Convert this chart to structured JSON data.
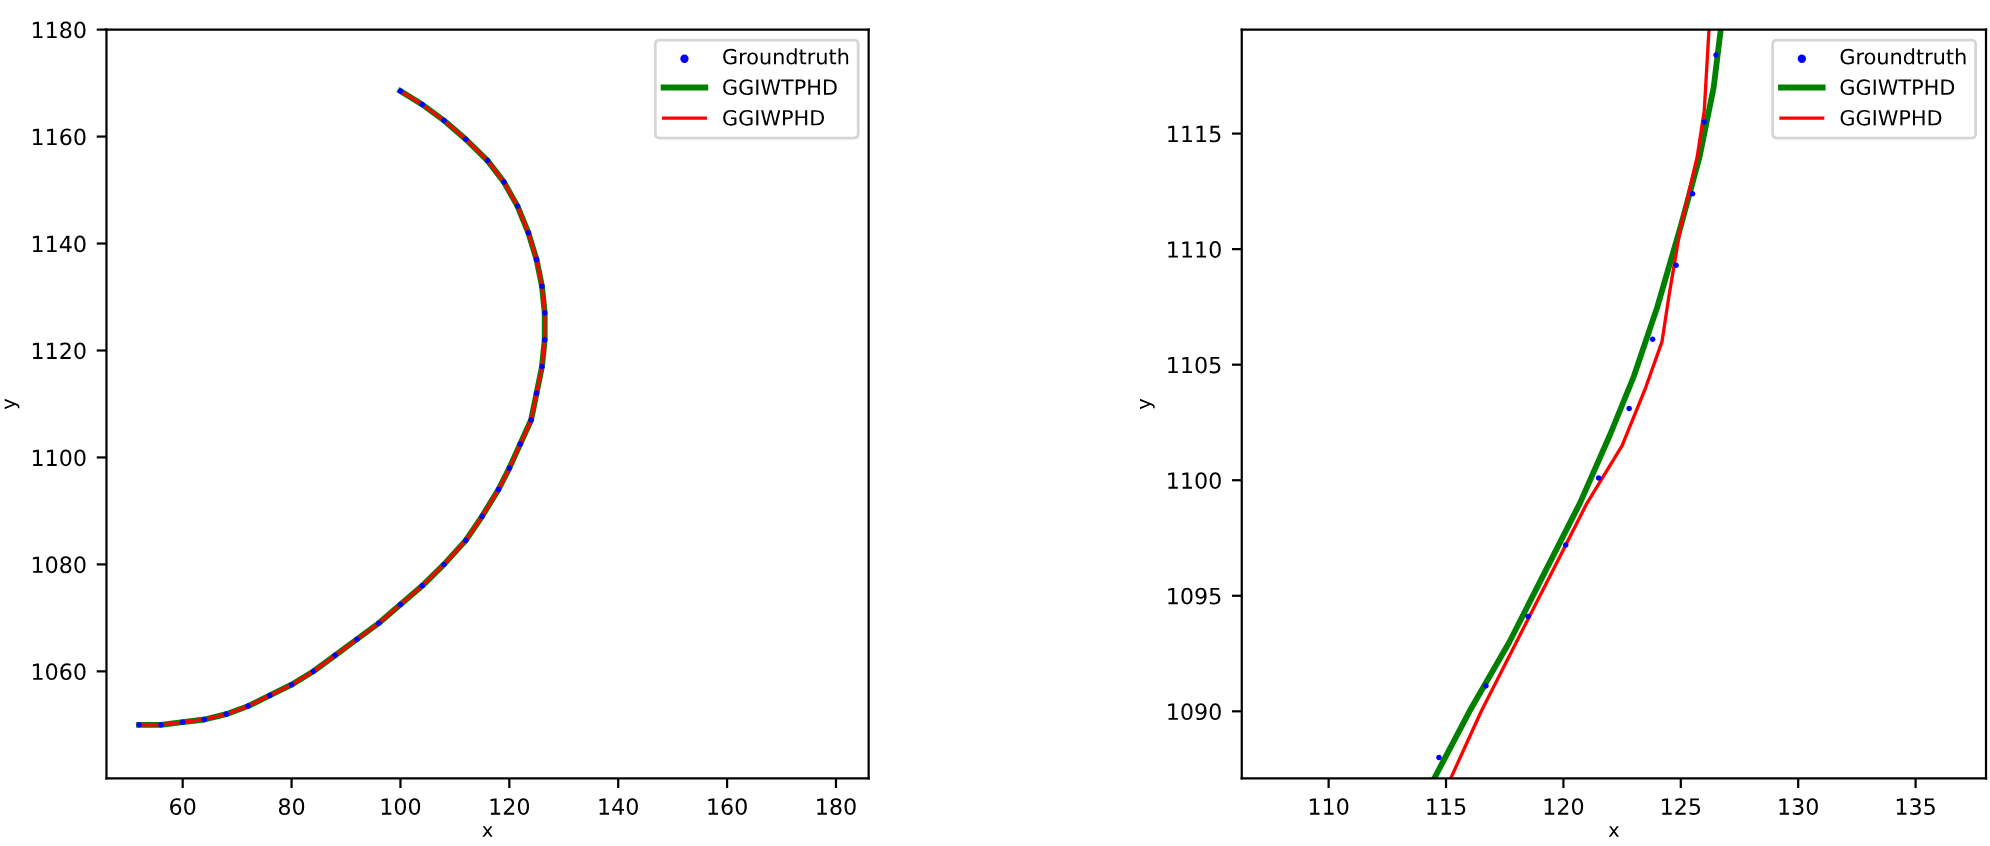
{
  "chart_data": [
    {
      "type": "line",
      "xlabel": "x",
      "ylabel": "y",
      "xlim": [
        46,
        186
      ],
      "ylim": [
        1040,
        1180
      ],
      "xticks": [
        60,
        80,
        100,
        120,
        140,
        160,
        180
      ],
      "yticks": [
        1060,
        1080,
        1100,
        1120,
        1140,
        1160,
        1180
      ],
      "grid": false,
      "legend": "top right",
      "series": [
        {
          "name": "Groundtruth",
          "type": "scatter",
          "marker": "circle",
          "color": "#0000ff",
          "x": [
            52,
            56,
            60,
            64,
            68,
            72,
            76,
            80,
            84,
            88,
            92,
            96,
            100,
            104,
            108,
            112,
            115,
            118,
            120,
            122,
            124,
            125,
            126,
            126.5,
            126.5,
            126,
            125,
            123.5,
            121.5,
            119,
            116,
            112,
            108,
            104,
            100
          ],
          "values": [
            1050,
            1050,
            1050.5,
            1051,
            1052,
            1053.5,
            1055.5,
            1057.5,
            1060,
            1063,
            1066,
            1069,
            1072.5,
            1076,
            1080,
            1084.5,
            1089,
            1094,
            1098,
            1102.5,
            1107,
            1112,
            1117,
            1122,
            1127,
            1132,
            1137,
            1142,
            1147,
            1151.5,
            1155.5,
            1159.5,
            1163,
            1166,
            1168.5
          ]
        },
        {
          "name": "GGIWTPHD",
          "marker": "none",
          "line_style": "solid",
          "color": "#008000",
          "x": [
            52,
            56,
            60,
            64,
            68,
            72,
            76,
            80,
            84,
            88,
            92,
            96,
            100,
            104,
            108,
            112,
            115,
            118,
            120,
            122,
            124,
            125,
            126,
            126.5,
            126.5,
            126,
            125,
            123.5,
            121.5,
            119,
            116,
            112,
            108,
            104,
            100
          ],
          "values": [
            1050,
            1050,
            1050.5,
            1051,
            1052,
            1053.5,
            1055.5,
            1057.5,
            1060,
            1063,
            1066,
            1069,
            1072.5,
            1076,
            1080,
            1084.5,
            1089,
            1094,
            1098,
            1102.5,
            1107,
            1112,
            1117,
            1122,
            1127,
            1132,
            1137,
            1142,
            1147,
            1151.5,
            1155.5,
            1159.5,
            1163,
            1166,
            1168.5
          ]
        },
        {
          "name": "GGIWPHD",
          "marker": "none",
          "line_style": "solid",
          "color": "#ff0000",
          "x": [
            52,
            56,
            60,
            64,
            68,
            72,
            76,
            80,
            84,
            88,
            92,
            96,
            100,
            104,
            108,
            112,
            115,
            118,
            120,
            122,
            124,
            125,
            126,
            126.5,
            126.5,
            126,
            125,
            123.5,
            121.5,
            119,
            116,
            112,
            108,
            104,
            100
          ],
          "values": [
            1050,
            1050,
            1050.5,
            1051,
            1052,
            1053.5,
            1055.5,
            1057.5,
            1060,
            1063,
            1066,
            1069,
            1072.5,
            1076,
            1080,
            1084.5,
            1089,
            1094,
            1098,
            1102.5,
            1107,
            1112,
            1117,
            1122,
            1127,
            1132,
            1137,
            1142,
            1147,
            1151.5,
            1155.5,
            1159.5,
            1163,
            1166,
            1168.5
          ]
        }
      ]
    },
    {
      "type": "line",
      "xlabel": "x",
      "ylabel": "y",
      "xlim": [
        106.3,
        138
      ],
      "ylim": [
        1087.1,
        1119.5
      ],
      "xticks": [
        110,
        115,
        120,
        125,
        130,
        135
      ],
      "yticks": [
        1090,
        1095,
        1100,
        1105,
        1110,
        1115
      ],
      "grid": false,
      "legend": "top right",
      "series": [
        {
          "name": "Groundtruth",
          "type": "scatter",
          "marker": "circle",
          "color": "#0000ff",
          "x": [
            114.7,
            116.7,
            118.5,
            120.1,
            121.5,
            122.8,
            123.8,
            124.8,
            125.5,
            126,
            126.5
          ],
          "values": [
            1088,
            1091.1,
            1094.1,
            1097.2,
            1100.1,
            1103.1,
            1106.1,
            1109.3,
            1112.4,
            1115.5,
            1118.4
          ]
        },
        {
          "name": "GGIWTPHD",
          "marker": "none",
          "line_style": "solid",
          "color": "#008000",
          "x": [
            114.5,
            116,
            117.7,
            119.2,
            120.7,
            122,
            123,
            124,
            125,
            125.8,
            126.4,
            126.7
          ],
          "values": [
            1087.1,
            1090,
            1093,
            1096,
            1099,
            1102,
            1104.5,
            1107.5,
            1111,
            1114,
            1117,
            1119.5
          ]
        },
        {
          "name": "GGIWPHD",
          "marker": "none",
          "line_style": "solid",
          "color": "#ff0000",
          "x": [
            115.2,
            116.5,
            118,
            119.5,
            121,
            122.5,
            123.5,
            124.2,
            124.5,
            125,
            125.7,
            126,
            126.2
          ],
          "values": [
            1087.1,
            1090,
            1093,
            1096,
            1099,
            1101.5,
            1104,
            1106,
            1108,
            1111,
            1114,
            1116,
            1119.5
          ]
        }
      ]
    }
  ]
}
